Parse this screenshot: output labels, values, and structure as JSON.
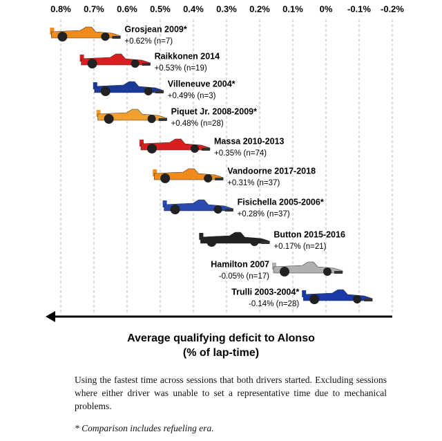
{
  "chart_data": {
    "type": "car",
    "categories": [
      "Grosjean 2009*",
      "Raikkonen 2014",
      "Villeneuve 2004*",
      "Piquet Jr. 2008-2009*",
      "Massa 2010-2013",
      "Vandoorne 2017-2018",
      "Fisichella 2005-2006*",
      "Button 2015-2016",
      "Hamilton 2007",
      "Trulli 2003-2004*"
    ],
    "values": [
      0.62,
      0.53,
      0.49,
      0.48,
      0.35,
      0.31,
      0.28,
      0.17,
      -0.05,
      -0.14
    ],
    "value_labels": [
      "+0.62% (n=7)",
      "+0.53% (n=19)",
      "+0.49% (n=3)",
      "+0.48% (n=28)",
      "+0.35% (n=74)",
      "+0.31% (n=37)",
      "+0.28% (n=37)",
      "+0.17% (n=21)",
      "-0.05% (n=17)",
      "-0.14% (n=28)"
    ],
    "colors": [
      "#f08a1c",
      "#d81e1e",
      "#1a3a9a",
      "#f0a030",
      "#d81e1e",
      "#f08a1c",
      "#2a4ab0",
      "#222222",
      "#b0b0b0",
      "#1a3aa8"
    ],
    "xlim": [
      0.8,
      -0.2
    ],
    "xticks": [
      {
        "value": 0.8,
        "label": "0.8%"
      },
      {
        "value": 0.7,
        "label": "0.7%"
      },
      {
        "value": 0.6,
        "label": "0.6%"
      },
      {
        "value": 0.5,
        "label": "0.5%"
      },
      {
        "value": 0.4,
        "label": "0.4%"
      },
      {
        "value": 0.3,
        "label": "0.3%"
      },
      {
        "value": 0.2,
        "label": "0.2%"
      },
      {
        "value": 0.1,
        "label": "0.1%"
      },
      {
        "value": 0,
        "label": "0%"
      },
      {
        "value": -0.1,
        "label": "-0.1%"
      },
      {
        "value": -0.2,
        "label": "-0.2%"
      }
    ],
    "grid": true,
    "xlabel": "Average qualifying deficit to Alonso",
    "xlabel_unit": "(% of lap-time)",
    "note": "Using the fastest time across sessions that both drivers started. Excluding sessions where either driver was unable to set a representative  time due to mechanical problems.",
    "footnote": "* Comparison includes refueling era."
  }
}
